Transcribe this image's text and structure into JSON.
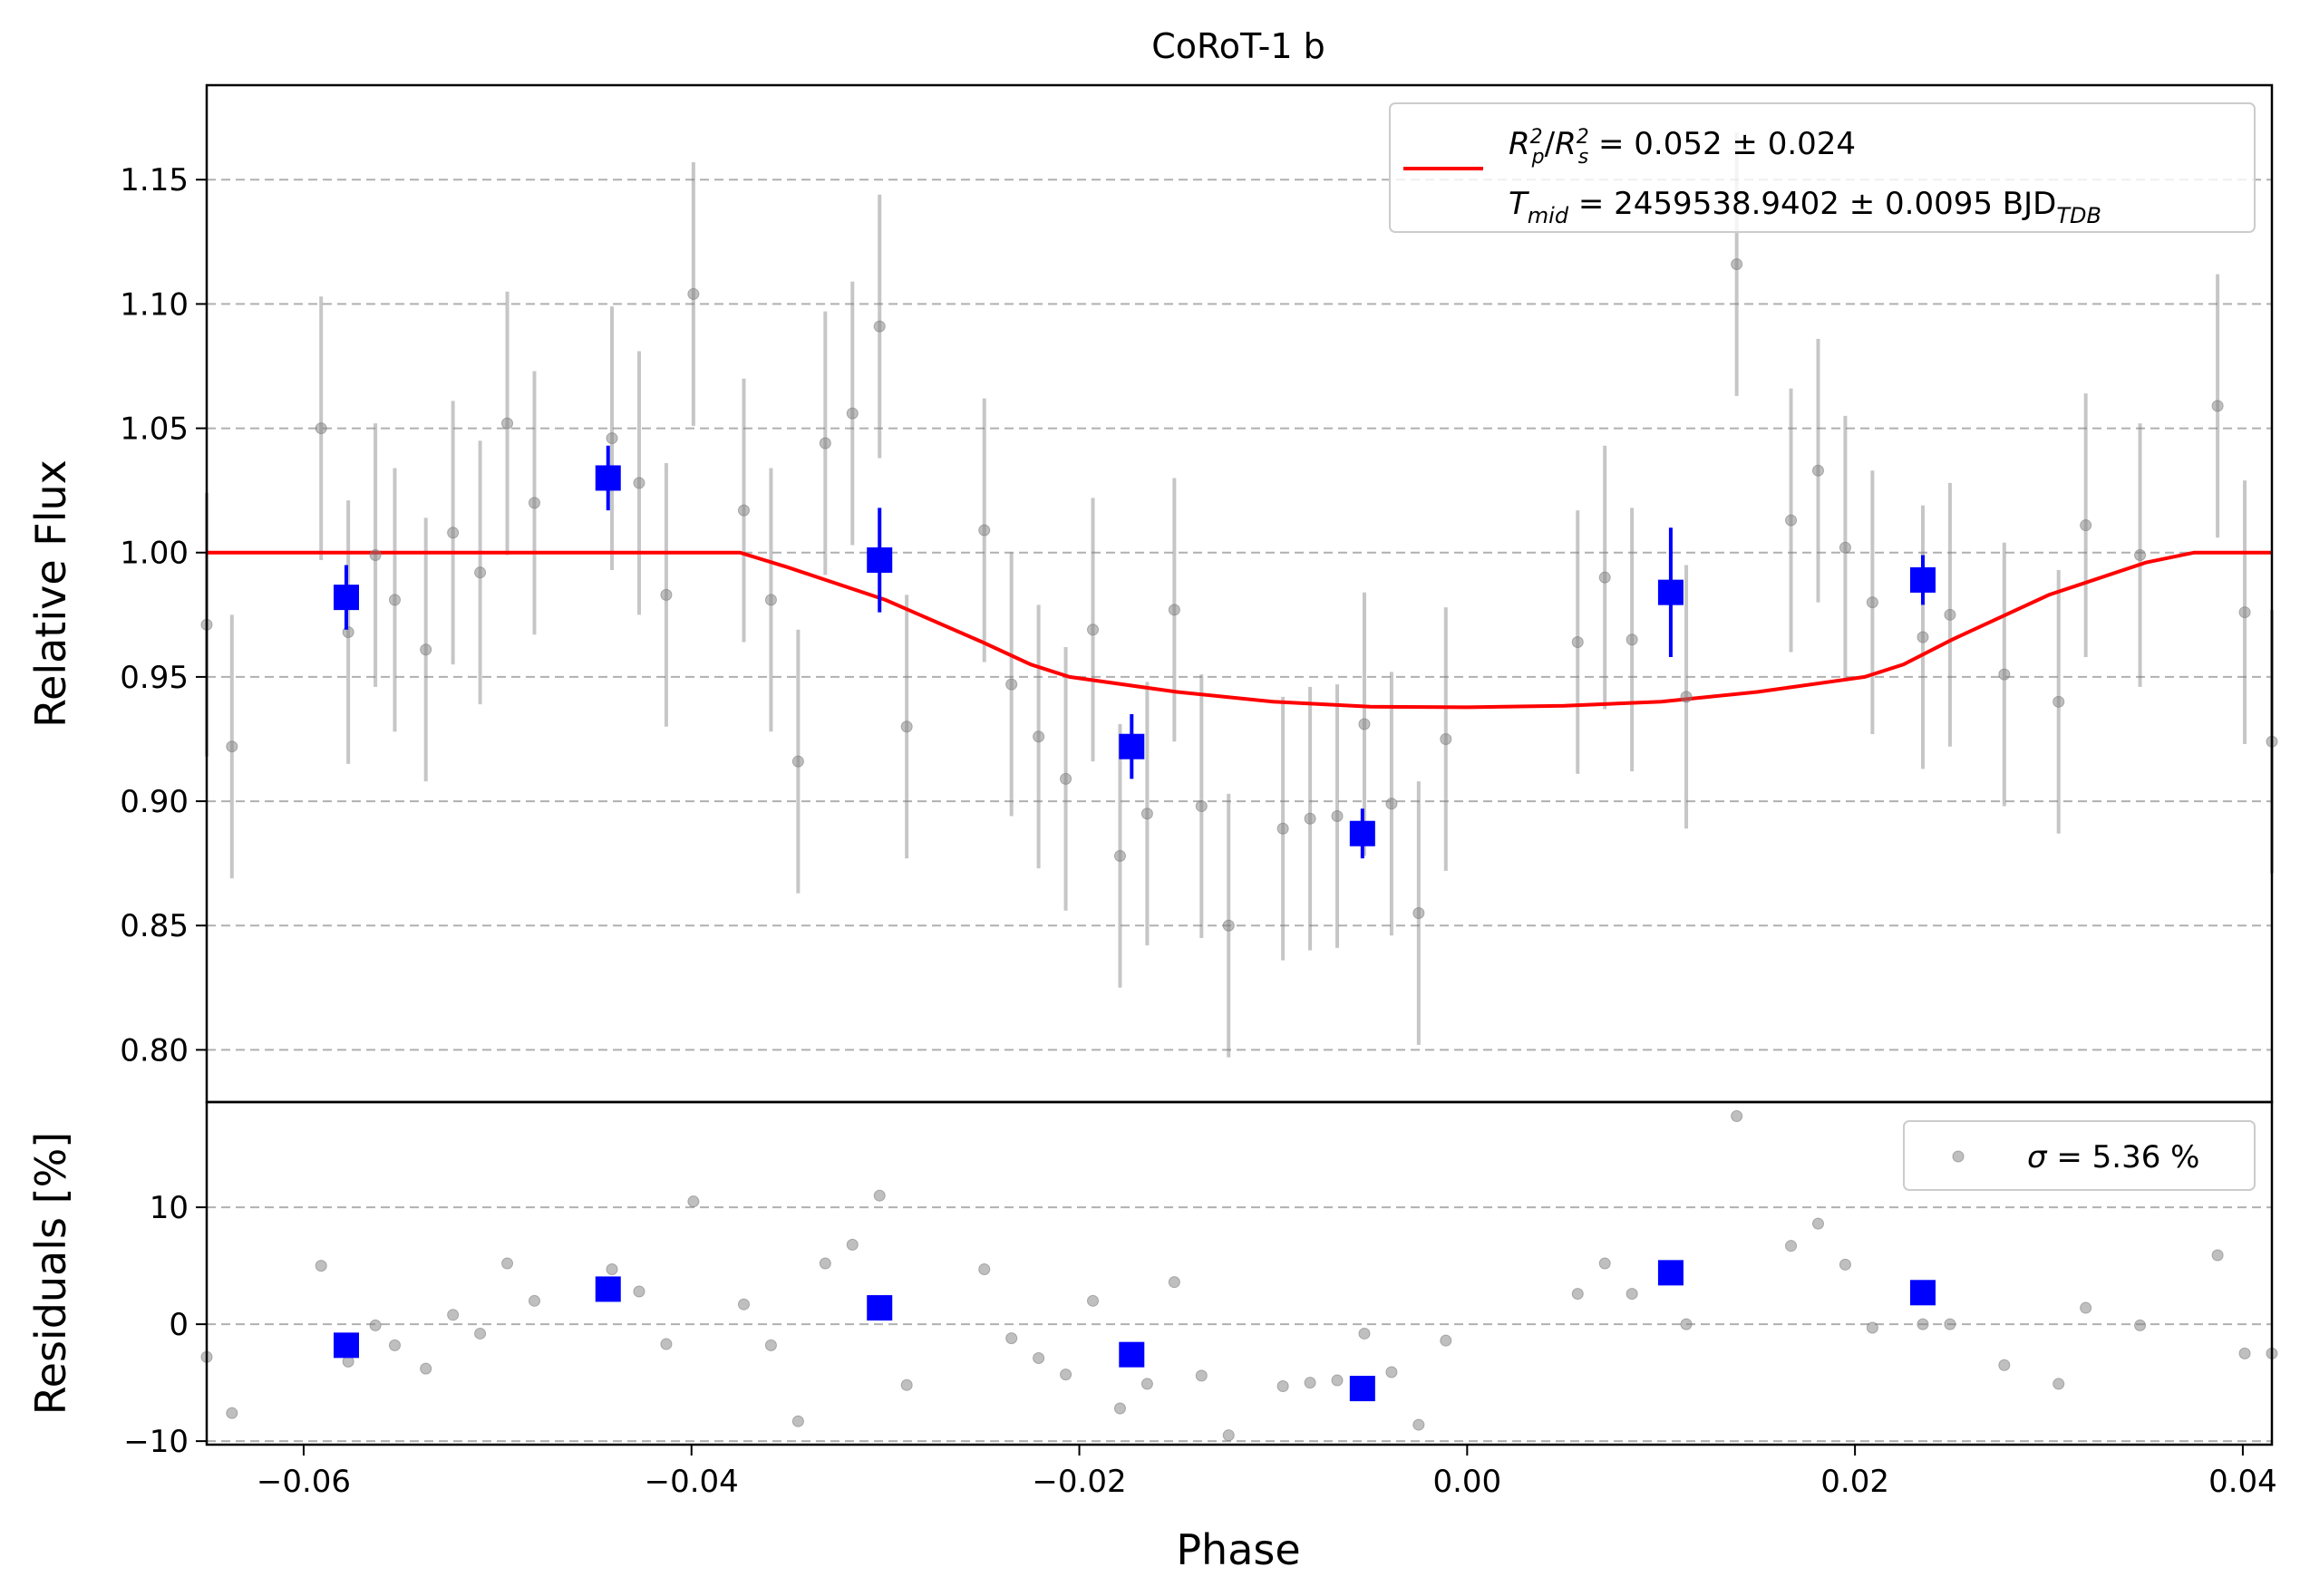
{
  "chart_data": [
    {
      "type": "scatter",
      "title": "CoRoT-1 b",
      "xlabel": "",
      "ylabel": "Relative Flux",
      "xlim": [
        -0.065,
        0.0415
      ],
      "ylim": [
        0.779,
        1.188
      ],
      "yticks": [
        0.8,
        0.85,
        0.9,
        0.95,
        1.0,
        1.05,
        1.1,
        1.15
      ],
      "ytick_labels": [
        "0.80",
        "0.85",
        "0.90",
        "0.95",
        "1.00",
        "1.05",
        "1.10",
        "1.15"
      ],
      "grid": "horizontal dashed",
      "legend_position": "top-right",
      "legend": {
        "model_line1": "R_p^2/R_s^2 = 0.052 ± 0.024",
        "model_line1_parts": {
          "r": "R",
          "p_sub": "p",
          "p_sup": "2",
          "slash": "/",
          "s_sub": "s",
          "s_sup": "2",
          "value": " = 0.052 ± 0.024"
        },
        "model_line2": "T_mid = 2459538.9402 ± 0.0095 BJD_TDB",
        "model_line2_parts": {
          "t": "T",
          "t_sub": "mid",
          "value": " = 2459538.9402 ± 0.0095 BJD",
          "unit_sub": "TDB"
        }
      },
      "series": [
        {
          "kind": "raw",
          "color": "#808080",
          "x": [
            -0.065,
            -0.0637,
            -0.0591,
            -0.0577,
            -0.0563,
            -0.0553,
            -0.0537,
            -0.0523,
            -0.0509,
            -0.0495,
            -0.0481,
            -0.0441,
            -0.0427,
            -0.0413,
            -0.0399,
            -0.0373,
            -0.0359,
            -0.0345,
            -0.0331,
            -0.0317,
            -0.0303,
            -0.0289,
            -0.0249,
            -0.0235,
            -0.0221,
            -0.0207,
            -0.0193,
            -0.0179,
            -0.0165,
            -0.0151,
            -0.0137,
            -0.0123,
            -0.0095,
            -0.0081,
            -0.0067,
            -0.0053,
            -0.0039,
            -0.0025,
            -0.0011,
            0.0057,
            0.0071,
            0.0085,
            0.0113,
            0.0139,
            0.0167,
            0.0181,
            0.0195,
            0.0209,
            0.0235,
            0.0249,
            0.0277,
            0.0305,
            0.0319,
            0.0347,
            0.0387,
            0.0401,
            0.0415
          ],
          "y": [
            0.971,
            0.922,
            1.05,
            0.968,
            0.999,
            0.981,
            0.961,
            1.008,
            0.992,
            1.052,
            1.02,
            1.046,
            1.028,
            0.983,
            1.104,
            1.017,
            0.981,
            0.916,
            1.044,
            1.056,
            1.091,
            0.93,
            1.009,
            0.947,
            0.926,
            0.909,
            0.969,
            0.878,
            0.895,
            0.977,
            0.898,
            0.85,
            0.889,
            0.893,
            0.894,
            0.931,
            0.899,
            0.855,
            0.925,
            0.964,
            0.99,
            0.965,
            0.942,
            1.116,
            1.013,
            1.033,
            1.002,
            0.98,
            0.966,
            0.975,
            0.951,
            0.94,
            1.011,
            0.999,
            1.059,
            0.976,
            0.924
          ],
          "yerr": [
            0.053,
            0.053,
            0.053,
            0.053,
            0.053,
            0.053,
            0.053,
            0.053,
            0.053,
            0.053,
            0.053,
            0.053,
            0.053,
            0.053,
            0.053,
            0.053,
            0.053,
            0.053,
            0.053,
            0.053,
            0.053,
            0.053,
            0.053,
            0.053,
            0.053,
            0.053,
            0.053,
            0.053,
            0.053,
            0.053,
            0.053,
            0.053,
            0.053,
            0.053,
            0.053,
            0.053,
            0.053,
            0.053,
            0.053,
            0.053,
            0.053,
            0.053,
            0.053,
            0.053,
            0.053,
            0.053,
            0.053,
            0.053,
            0.053,
            0.053,
            0.053,
            0.053,
            0.053,
            0.053,
            0.053,
            0.053,
            0.053
          ]
        },
        {
          "kind": "binned",
          "color": "#0000ff",
          "x": [
            -0.0578,
            -0.0443,
            -0.0303,
            -0.0173,
            -0.0054,
            0.0105,
            0.0235
          ],
          "y": [
            0.982,
            1.03,
            0.997,
            0.922,
            0.887,
            0.984,
            0.989
          ],
          "yerr": [
            0.013,
            0.013,
            0.021,
            0.013,
            0.01,
            0.026,
            0.01
          ]
        },
        {
          "kind": "model",
          "color": "#ff0000",
          "x": [
            -0.065,
            -0.0375,
            -0.035,
            -0.03,
            -0.025,
            -0.0225,
            -0.0205,
            -0.015,
            -0.01,
            -0.005,
            0.0,
            0.005,
            0.01,
            0.015,
            0.0205,
            0.0225,
            0.025,
            0.03,
            0.035,
            0.0375,
            0.0415
          ],
          "y": [
            1.0,
            1.0,
            0.994,
            0.981,
            0.964,
            0.955,
            0.95,
            0.944,
            0.94,
            0.938,
            0.9378,
            0.9384,
            0.94,
            0.944,
            0.95,
            0.955,
            0.965,
            0.983,
            0.996,
            1.0,
            1.0
          ]
        }
      ]
    },
    {
      "type": "scatter",
      "title": "",
      "xlabel": "Phase",
      "ylabel": "Residuals [%]",
      "xlim": [
        -0.065,
        0.0415
      ],
      "ylim": [
        -10.3,
        19.0
      ],
      "xticks": [
        -0.06,
        -0.04,
        -0.02,
        0.0,
        0.02,
        0.04
      ],
      "xtick_labels": [
        "−0.06",
        "−0.04",
        "−0.02",
        "0.00",
        "0.02",
        "0.04"
      ],
      "yticks": [
        -10,
        0,
        10
      ],
      "ytick_labels": [
        "−10",
        "0",
        "10"
      ],
      "grid": "horizontal dashed",
      "legend_position": "top-right",
      "legend": {
        "sigma_symbol": "σ",
        "sigma_text": " = 5.36 %"
      },
      "series": [
        {
          "kind": "raw",
          "color": "#808080",
          "x": [
            -0.065,
            -0.0637,
            -0.0591,
            -0.0577,
            -0.0563,
            -0.0553,
            -0.0537,
            -0.0523,
            -0.0509,
            -0.0495,
            -0.0481,
            -0.0441,
            -0.0427,
            -0.0413,
            -0.0399,
            -0.0373,
            -0.0359,
            -0.0345,
            -0.0331,
            -0.0317,
            -0.0303,
            -0.0289,
            -0.0249,
            -0.0235,
            -0.0221,
            -0.0207,
            -0.0193,
            -0.0179,
            -0.0165,
            -0.0151,
            -0.0137,
            -0.0123,
            -0.0095,
            -0.0081,
            -0.0067,
            -0.0053,
            -0.0039,
            -0.0025,
            -0.0011,
            0.0057,
            0.0071,
            0.0085,
            0.0113,
            0.0139,
            0.0167,
            0.0181,
            0.0195,
            0.0209,
            0.0235,
            0.0249,
            0.0277,
            0.0305,
            0.0319,
            0.0347,
            0.0387,
            0.0401,
            0.0415
          ],
          "y": [
            -2.8,
            -7.6,
            5.0,
            -3.2,
            -0.1,
            -1.8,
            -3.8,
            0.8,
            -0.8,
            5.2,
            2.0,
            4.7,
            2.8,
            -1.7,
            10.5,
            1.7,
            -1.8,
            -8.3,
            5.2,
            6.8,
            11.0,
            -5.2,
            4.7,
            -1.2,
            -2.9,
            -4.3,
            2.0,
            -7.2,
            -5.1,
            3.6,
            -4.4,
            -9.5,
            -5.3,
            -5.0,
            -4.8,
            -0.8,
            -4.1,
            -8.6,
            -1.4,
            2.6,
            5.2,
            2.6,
            0.0,
            17.8,
            6.7,
            8.6,
            5.1,
            -0.3,
            0.0,
            0.0,
            -3.5,
            -5.1,
            1.4,
            -0.1,
            5.9,
            -2.5,
            -2.5
          ]
        },
        {
          "kind": "binned",
          "color": "#0000ff",
          "x": [
            -0.0578,
            -0.0443,
            -0.0303,
            -0.0173,
            -0.0054,
            0.0105,
            0.0235
          ],
          "y": [
            -1.8,
            3.0,
            1.4,
            -2.6,
            -5.5,
            4.4,
            2.7
          ]
        }
      ]
    }
  ]
}
